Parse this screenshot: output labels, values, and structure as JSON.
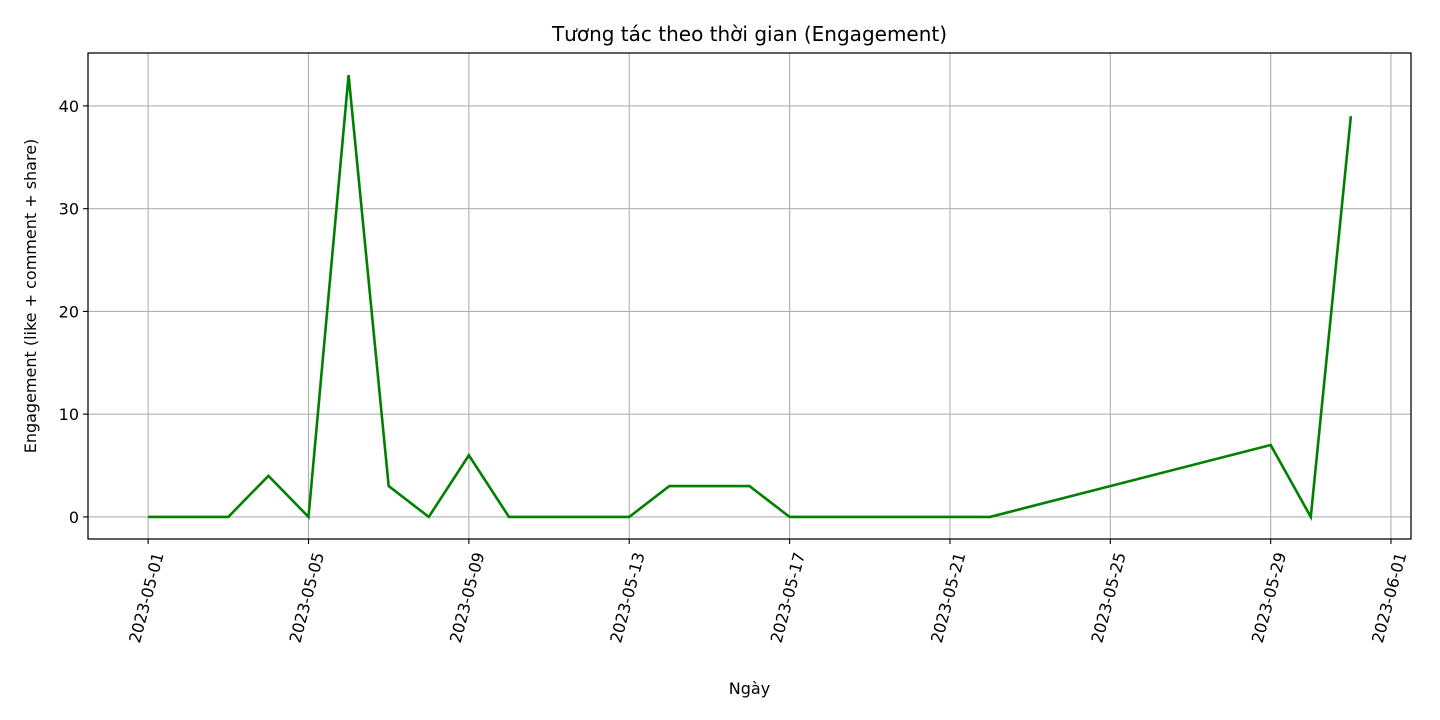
{
  "chart_data": {
    "type": "line",
    "title": "Tương tác theo thời gian (Engagement)",
    "xlabel": "Ngày",
    "ylabel": "Engagement (like + comment + share)",
    "x": [
      "2023-05-01",
      "2023-05-02",
      "2023-05-03",
      "2023-05-04",
      "2023-05-05",
      "2023-05-06",
      "2023-05-07",
      "2023-05-08",
      "2023-05-09",
      "2023-05-10",
      "2023-05-11",
      "2023-05-12",
      "2023-05-13",
      "2023-05-14",
      "2023-05-15",
      "2023-05-16",
      "2023-05-17",
      "2023-05-18",
      "2023-05-19",
      "2023-05-20",
      "2023-05-21",
      "2023-05-22",
      "2023-05-29",
      "2023-05-30",
      "2023-05-31"
    ],
    "series": [
      {
        "values": [
          0,
          0,
          0,
          4,
          0,
          43,
          3,
          0,
          6,
          0,
          0,
          0,
          0,
          3,
          3,
          3,
          0,
          0,
          0,
          0,
          0,
          0,
          7,
          0,
          39
        ],
        "color": "#008000"
      }
    ],
    "xticks": [
      "2023-05-01",
      "2023-05-05",
      "2023-05-09",
      "2023-05-13",
      "2023-05-17",
      "2023-05-21",
      "2023-05-25",
      "2023-05-29",
      "2023-06-01"
    ],
    "yticks": [
      "0",
      "10",
      "20",
      "30",
      "40"
    ],
    "xlim": [
      "2023-04-29.5",
      "2023-06-01.5"
    ],
    "ylim": [
      -2.15,
      45.15
    ],
    "grid": true,
    "tick_rotation_deg": 75
  }
}
